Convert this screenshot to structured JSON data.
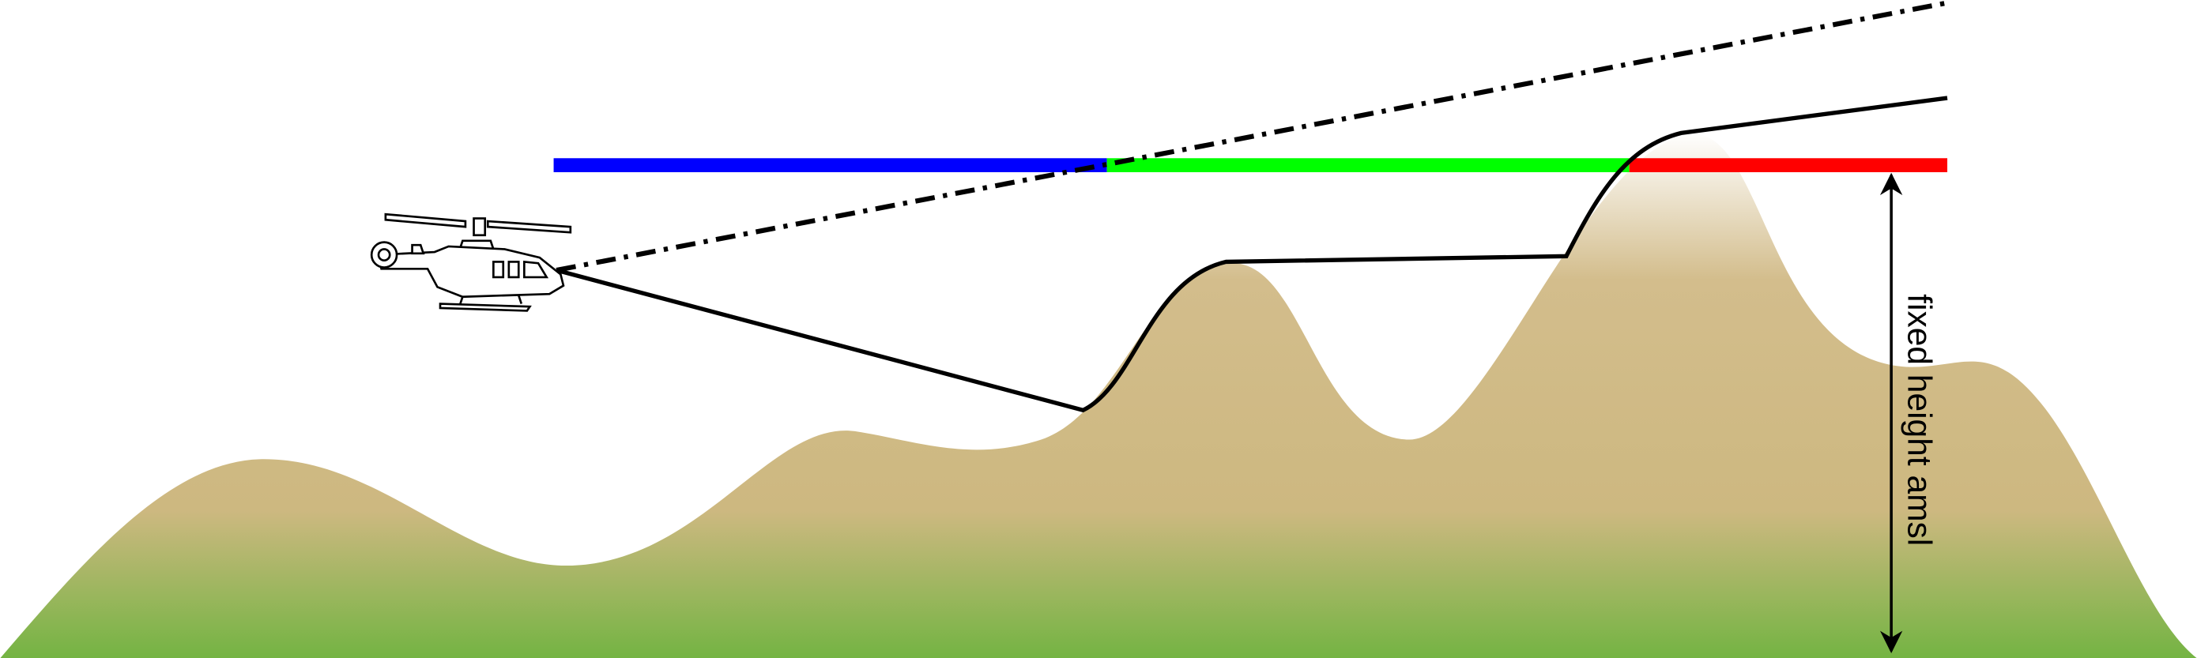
{
  "label": "fixed height amsl"
}
